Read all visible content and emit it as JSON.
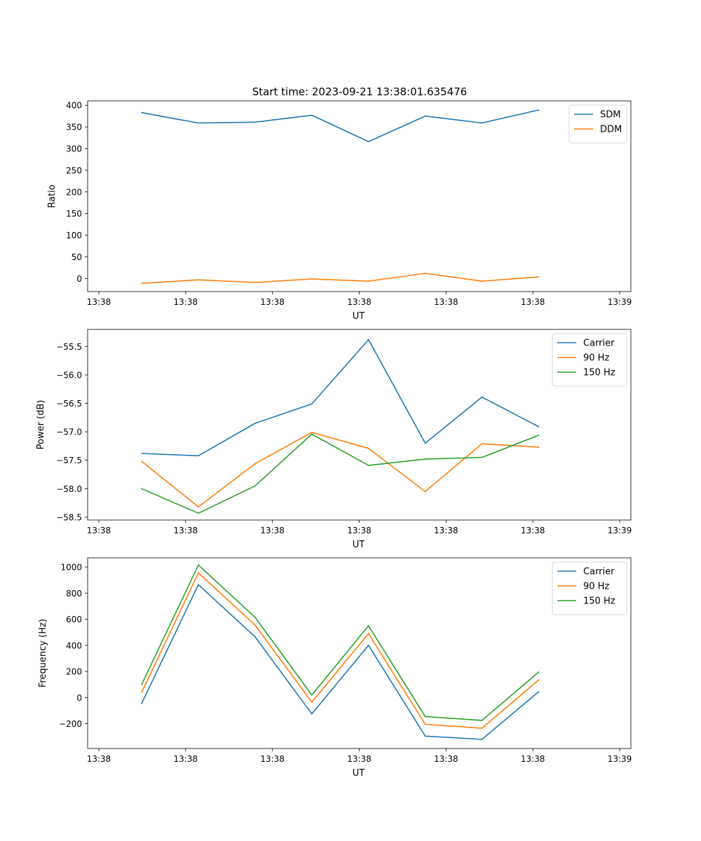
{
  "figure": {
    "title": "Start time: 2023-09-21 13:38:01.635476"
  },
  "colors": {
    "blue": "#1f77b4",
    "orange": "#ff7f0e",
    "green": "#2ca02c"
  },
  "chart_data": [
    {
      "type": "line",
      "title": "Start time: 2023-09-21 13:38:01.635476",
      "xlabel": "UT",
      "ylabel": "Ratio",
      "xlim": [
        0,
        9
      ],
      "ylim": [
        -30,
        410
      ],
      "yticks": [
        0,
        50,
        100,
        150,
        200,
        250,
        300,
        350,
        400
      ],
      "xticks": [
        0,
        1.5,
        3,
        4.5,
        6,
        7.5,
        9
      ],
      "xtick_labels": [
        "13:38",
        "13:38",
        "13:38",
        "13:38",
        "13:38",
        "13:38",
        "13:39"
      ],
      "x": [
        0.74,
        1.72,
        2.7,
        3.68,
        4.66,
        5.64,
        6.62,
        7.6
      ],
      "legend_loc": "upper right",
      "series": [
        {
          "name": "SDM",
          "color": "#1f77b4",
          "values": [
            383,
            359,
            361,
            377,
            316,
            375,
            359,
            389
          ]
        },
        {
          "name": "DDM",
          "color": "#ff7f0e",
          "values": [
            -11,
            -3,
            -9,
            -1,
            -6,
            12,
            -6,
            4
          ]
        }
      ]
    },
    {
      "type": "line",
      "title": "",
      "xlabel": "UT",
      "ylabel": "Power (dB)",
      "xlim": [
        0,
        9
      ],
      "ylim": [
        -58.55,
        -55.2
      ],
      "yticks": [
        -58.5,
        -58.0,
        -57.5,
        -57.0,
        -56.5,
        -56.0,
        -55.5
      ],
      "ytick_labels": [
        "−58.5",
        "−58.0",
        "−57.5",
        "−57.0",
        "−56.5",
        "−56.0",
        "−55.5"
      ],
      "xticks": [
        0,
        1.5,
        3,
        4.5,
        6,
        7.5,
        9
      ],
      "xtick_labels": [
        "13:38",
        "13:38",
        "13:38",
        "13:38",
        "13:38",
        "13:38",
        "13:39"
      ],
      "x": [
        0.74,
        1.72,
        2.7,
        3.68,
        4.66,
        5.64,
        6.62,
        7.6
      ],
      "legend_loc": "upper right",
      "series": [
        {
          "name": "Carrier",
          "color": "#1f77b4",
          "values": [
            -57.38,
            -57.42,
            -56.85,
            -56.51,
            -55.38,
            -57.2,
            -56.39,
            -56.91
          ]
        },
        {
          "name": "90 Hz",
          "color": "#ff7f0e",
          "values": [
            -57.52,
            -58.32,
            -57.56,
            -57.01,
            -57.29,
            -58.05,
            -57.21,
            -57.27
          ]
        },
        {
          "name": "150 Hz",
          "color": "#2ca02c",
          "values": [
            -58.0,
            -58.43,
            -57.95,
            -57.04,
            -57.59,
            -57.48,
            -57.45,
            -57.06
          ]
        }
      ]
    },
    {
      "type": "line",
      "title": "",
      "xlabel": "UT",
      "ylabel": "Frequency (Hz)",
      "xlim": [
        0,
        9
      ],
      "ylim": [
        -390,
        1070
      ],
      "yticks": [
        -200,
        0,
        200,
        400,
        600,
        800,
        1000
      ],
      "ytick_labels": [
        "−200",
        "0",
        "200",
        "400",
        "600",
        "800",
        "1000"
      ],
      "xticks": [
        0,
        1.5,
        3,
        4.5,
        6,
        7.5,
        9
      ],
      "xtick_labels": [
        "13:38",
        "13:38",
        "13:38",
        "13:38",
        "13:38",
        "13:38",
        "13:39"
      ],
      "x": [
        0.74,
        1.72,
        2.7,
        3.68,
        4.66,
        5.64,
        6.62,
        7.6
      ],
      "legend_loc": "upper right",
      "series": [
        {
          "name": "Carrier",
          "color": "#1f77b4",
          "values": [
            -45,
            865,
            465,
            -125,
            400,
            -295,
            -320,
            45
          ]
        },
        {
          "name": "90 Hz",
          "color": "#ff7f0e",
          "values": [
            40,
            955,
            555,
            -35,
            490,
            -205,
            -235,
            135
          ]
        },
        {
          "name": "150 Hz",
          "color": "#2ca02c",
          "values": [
            100,
            1015,
            615,
            20,
            550,
            -145,
            -175,
            195
          ]
        }
      ]
    }
  ]
}
